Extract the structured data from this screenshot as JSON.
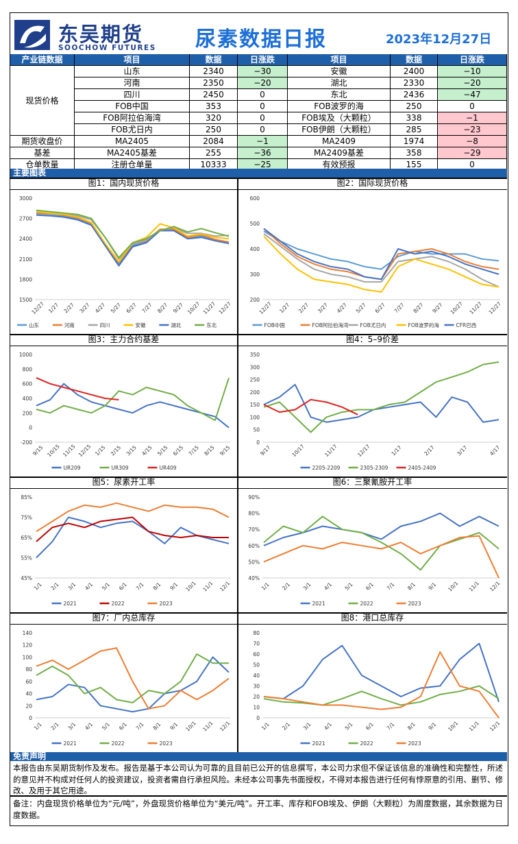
{
  "header": {
    "logo_cn": "东吴期货",
    "logo_en": "SOOCHOW FUTURES",
    "title": "尿素数据日报",
    "date": "2023年12月27日"
  },
  "table": {
    "headers": [
      "产业链数据",
      "项目",
      "数据",
      "日涨跌",
      "项目",
      "数据",
      "日涨跌"
    ],
    "groups": [
      "现货价格",
      "期货收盘价",
      "基差",
      "仓单数量"
    ],
    "rows": [
      {
        "l_item": "山东",
        "l_val": "2340",
        "l_chg": "−30",
        "r_item": "安徽",
        "r_val": "2400",
        "r_chg": "−10"
      },
      {
        "l_item": "河南",
        "l_val": "2350",
        "l_chg": "−20",
        "r_item": "湖北",
        "r_val": "2330",
        "r_chg": "−20"
      },
      {
        "l_item": "四川",
        "l_val": "2450",
        "l_chg": "0",
        "r_item": "东北",
        "r_val": "2436",
        "r_chg": "−47"
      },
      {
        "l_item": "FOB中国",
        "l_val": "353",
        "l_chg": "0",
        "r_item": "FOB波罗的海",
        "r_val": "250",
        "r_chg": "0"
      },
      {
        "l_item": "FOB阿拉伯海湾",
        "l_val": "320",
        "l_chg": "0",
        "r_item": "FOB埃及（大颗粒）",
        "r_val": "338",
        "r_chg": "−1"
      },
      {
        "l_item": "FOB尤日内",
        "l_val": "250",
        "l_chg": "0",
        "r_item": "FOB伊朗（大颗粒）",
        "r_val": "285",
        "r_chg": "−23"
      },
      {
        "l_item": "MA2405",
        "l_val": "2084",
        "l_chg": "−1",
        "r_item": "MA2409",
        "r_val": "1974",
        "r_chg": "−8"
      },
      {
        "l_item": "MA2405基差",
        "l_val": "255",
        "l_chg": "−36",
        "r_item": "MA2409基差",
        "r_val": "358",
        "r_chg": "−29"
      },
      {
        "l_item": "注册仓单量",
        "l_val": "10333",
        "l_chg": "−25",
        "r_item": "有效预报",
        "r_val": "155",
        "r_chg": "0"
      }
    ],
    "colors": {
      "header_bg": "#1f5ea8",
      "up_bg": "#ffc7ce",
      "down_bg": "#c6efce"
    }
  },
  "sections": {
    "charts": "主要图表",
    "disclaimer": "免责声明"
  },
  "chart_data": [
    {
      "id": "c1",
      "title": "图1：国内现货价格",
      "type": "line",
      "x_ticks": [
        "12/27",
        "1/27",
        "2/27",
        "3/27",
        "4/27",
        "5/27",
        "6/27",
        "7/27",
        "8/27",
        "9/27",
        "10/27",
        "11/27",
        "12/27"
      ],
      "yticks": [
        "3000",
        "2700",
        "2400",
        "2100",
        "1800",
        "1500"
      ],
      "ylim": [
        1500,
        3000
      ],
      "series": [
        {
          "name": "山东",
          "color": "#5b9bd5",
          "values": [
            2780,
            2760,
            2740,
            2700,
            2620,
            2300,
            2030,
            2300,
            2350,
            2520,
            2520,
            2400,
            2440,
            2380,
            2340
          ]
        },
        {
          "name": "河南",
          "color": "#ed7d31",
          "values": [
            2790,
            2770,
            2750,
            2710,
            2630,
            2320,
            2050,
            2320,
            2370,
            2540,
            2540,
            2420,
            2460,
            2390,
            2350
          ]
        },
        {
          "name": "四川",
          "color": "#a5a5a5",
          "values": [
            2760,
            2760,
            2760,
            2740,
            2680,
            2420,
            2100,
            2320,
            2380,
            2520,
            2560,
            2480,
            2480,
            2440,
            2450
          ]
        },
        {
          "name": "安徽",
          "color": "#ffc000",
          "values": [
            2800,
            2780,
            2760,
            2720,
            2640,
            2330,
            2060,
            2340,
            2420,
            2620,
            2560,
            2440,
            2470,
            2420,
            2400
          ]
        },
        {
          "name": "湖北",
          "color": "#4472c4",
          "values": [
            2750,
            2740,
            2720,
            2680,
            2600,
            2300,
            2000,
            2280,
            2340,
            2520,
            2520,
            2400,
            2420,
            2370,
            2330
          ]
        },
        {
          "name": "东北",
          "color": "#70ad47",
          "values": [
            2820,
            2800,
            2780,
            2760,
            2700,
            2420,
            2120,
            2340,
            2400,
            2520,
            2580,
            2500,
            2550,
            2490,
            2436
          ]
        }
      ]
    },
    {
      "id": "c2",
      "title": "图2：国际现货价格",
      "type": "line",
      "x_ticks": [
        "12/27",
        "1/27",
        "2/27",
        "3/27",
        "4/27",
        "5/27",
        "6/27",
        "7/27",
        "8/27",
        "9/27",
        "10/27",
        "11/27",
        "12/27"
      ],
      "yticks": [
        "600",
        "500",
        "400",
        "300",
        "200"
      ],
      "ylim": [
        200,
        600
      ],
      "series": [
        {
          "name": "FOB中国",
          "color": "#5b9bd5",
          "values": [
            470,
            430,
            400,
            380,
            360,
            350,
            330,
            320,
            370,
            390,
            380,
            380,
            380,
            360,
            353
          ]
        },
        {
          "name": "FOB阿拉伯海湾",
          "color": "#ed7d31",
          "values": [
            480,
            420,
            370,
            340,
            320,
            310,
            290,
            280,
            380,
            390,
            400,
            380,
            350,
            330,
            320
          ]
        },
        {
          "name": "FOB尤日内",
          "color": "#a5a5a5",
          "values": [
            460,
            410,
            360,
            320,
            300,
            290,
            270,
            270,
            350,
            360,
            370,
            350,
            320,
            280,
            250
          ]
        },
        {
          "name": "FOB波罗的海",
          "color": "#ffc000",
          "values": [
            450,
            380,
            320,
            280,
            270,
            260,
            240,
            230,
            330,
            360,
            340,
            320,
            290,
            260,
            250
          ]
        },
        {
          "name": "CFR巴西",
          "color": "#4472c4",
          "values": [
            480,
            430,
            380,
            350,
            330,
            320,
            290,
            280,
            400,
            380,
            390,
            370,
            340,
            320,
            300
          ]
        }
      ]
    },
    {
      "id": "c3",
      "title": "图3：主力合约基差",
      "type": "line",
      "x_ticks": [
        "9/15",
        "10/15",
        "11/15",
        "12/15",
        "1/15",
        "2/15",
        "3/15",
        "4/15",
        "5/15",
        "6/15",
        "7/15",
        "8/15",
        "9/15"
      ],
      "yticks": [
        "1000",
        "800",
        "600",
        "400",
        "200",
        "0",
        "-200"
      ],
      "ylim": [
        -200,
        1000
      ],
      "series": [
        {
          "name": "UR209",
          "color": "#4472c4",
          "values": [
            300,
            380,
            600,
            450,
            350,
            300,
            250,
            200,
            300,
            350,
            300,
            250,
            200,
            150,
            0
          ]
        },
        {
          "name": "UR309",
          "color": "#70ad47",
          "values": [
            250,
            200,
            300,
            250,
            200,
            300,
            500,
            450,
            550,
            500,
            450,
            300,
            200,
            100,
            680
          ]
        },
        {
          "name": "UR409",
          "color": "#e02020",
          "values": [
            680,
            600,
            550,
            500,
            450,
            400,
            380,
            null,
            null,
            null,
            null,
            null,
            null,
            null,
            null
          ]
        }
      ]
    },
    {
      "id": "c4",
      "title": "图4：5–9价差",
      "type": "line",
      "x_ticks": [
        "9/17",
        "10/17",
        "11/17",
        "12/17",
        "1/17",
        "2/17",
        "3/17",
        "4/17"
      ],
      "yticks": [
        "350",
        "300",
        "250",
        "200",
        "150",
        "100",
        "50",
        "0"
      ],
      "ylim": [
        0,
        350
      ],
      "series": [
        {
          "name": "2205-2209",
          "color": "#4472c4",
          "values": [
            150,
            180,
            230,
            100,
            80,
            90,
            100,
            130,
            140,
            150,
            160,
            100,
            180,
            160,
            80,
            90
          ]
        },
        {
          "name": "2305-2309",
          "color": "#70ad47",
          "values": [
            140,
            160,
            100,
            40,
            100,
            120,
            130,
            130,
            150,
            160,
            200,
            240,
            260,
            280,
            310,
            320
          ]
        },
        {
          "name": "2405-2409",
          "color": "#e02020",
          "values": [
            150,
            120,
            130,
            170,
            160,
            140,
            110,
            null,
            null,
            null,
            null,
            null,
            null,
            null,
            null,
            null
          ]
        }
      ]
    },
    {
      "id": "c5",
      "title": "图5：尿素开工率",
      "type": "line",
      "x_ticks": [
        "1/1",
        "2/1",
        "3/1",
        "4/1",
        "5/1",
        "6/1",
        "7/1",
        "8/1",
        "9/1",
        "10/1",
        "11/1",
        "12/1"
      ],
      "yticks": [
        "85%",
        "75%",
        "65%",
        "55%",
        "45%"
      ],
      "ylim": [
        45,
        85
      ],
      "series": [
        {
          "name": "2021",
          "color": "#4472c4",
          "values": [
            55,
            63,
            75,
            73,
            70,
            72,
            73,
            68,
            62,
            70,
            66,
            64,
            62
          ]
        },
        {
          "name": "2022",
          "color": "#c00000",
          "values": [
            63,
            70,
            72,
            70,
            73,
            74,
            75,
            68,
            66,
            65,
            66,
            65,
            65
          ]
        },
        {
          "name": "2023",
          "color": "#ed7d31",
          "values": [
            68,
            73,
            78,
            81,
            80,
            82,
            80,
            78,
            81,
            80,
            80,
            79,
            75
          ]
        }
      ]
    },
    {
      "id": "c6",
      "title": "图6：三聚氰胺开工率",
      "type": "line",
      "x_ticks": [
        "1/1",
        "2/1",
        "3/1",
        "4/1",
        "5/1",
        "6/1",
        "7/1",
        "8/1",
        "9/1",
        "10/1",
        "11/1",
        "12/1"
      ],
      "yticks": [
        "90%",
        "80%",
        "70%",
        "60%",
        "50%",
        "40%"
      ],
      "ylim": [
        40,
        90
      ],
      "series": [
        {
          "name": "2021",
          "color": "#4472c4",
          "values": [
            60,
            65,
            68,
            72,
            70,
            68,
            64,
            72,
            75,
            80,
            72,
            78,
            72
          ]
        },
        {
          "name": "2022",
          "color": "#70ad47",
          "values": [
            62,
            72,
            68,
            78,
            70,
            68,
            62,
            55,
            45,
            60,
            64,
            68,
            58
          ]
        },
        {
          "name": "2023",
          "color": "#ed7d31",
          "values": [
            50,
            55,
            60,
            58,
            62,
            60,
            58,
            62,
            55,
            60,
            65,
            66,
            40
          ]
        }
      ]
    },
    {
      "id": "c7",
      "title": "图7：厂内总库存",
      "type": "line",
      "x_ticks": [
        "1/1",
        "2/1",
        "3/1",
        "4/1",
        "5/1",
        "6/1",
        "7/1",
        "8/1",
        "9/1",
        "10/1",
        "11/1",
        "12/1"
      ],
      "yticks": [
        "140",
        "120",
        "100",
        "80",
        "60",
        "40",
        "20",
        "0"
      ],
      "ylim": [
        0,
        140
      ],
      "series": [
        {
          "name": "2021",
          "color": "#4472c4",
          "values": [
            30,
            35,
            55,
            50,
            20,
            15,
            10,
            15,
            40,
            45,
            60,
            100,
            75
          ]
        },
        {
          "name": "2022",
          "color": "#70ad47",
          "values": [
            70,
            85,
            70,
            40,
            50,
            30,
            25,
            45,
            40,
            60,
            105,
            90,
            90
          ]
        },
        {
          "name": "2023",
          "color": "#ed7d31",
          "values": [
            85,
            95,
            80,
            95,
            110,
            115,
            60,
            15,
            20,
            45,
            30,
            45,
            65
          ]
        }
      ]
    },
    {
      "id": "c8",
      "title": "图8：港口总库存",
      "type": "line",
      "x_ticks": [
        "1/1",
        "2/1",
        "3/1",
        "4/1",
        "5/1",
        "6/1",
        "7/1",
        "8/1",
        "9/1",
        "10/1",
        "11/1",
        "12/1"
      ],
      "yticks": [
        "80",
        "70",
        "60",
        "50",
        "40",
        "30",
        "20",
        "10",
        "0"
      ],
      "ylim": [
        0,
        80
      ],
      "series": [
        {
          "name": "2021",
          "color": "#4472c4",
          "values": [
            20,
            18,
            30,
            55,
            68,
            40,
            30,
            20,
            28,
            30,
            55,
            70,
            15
          ]
        },
        {
          "name": "2022",
          "color": "#70ad47",
          "values": [
            18,
            15,
            14,
            12,
            18,
            25,
            18,
            12,
            15,
            22,
            25,
            30,
            18
          ]
        },
        {
          "name": "2023",
          "color": "#ed7d31",
          "values": [
            20,
            18,
            15,
            12,
            12,
            10,
            8,
            10,
            20,
            62,
            30,
            25,
            0
          ]
        }
      ]
    }
  ],
  "disclaimer": "本报告由东吴期货制作及发布。报告是基于本公司认为可靠的且目前已公开的信息撰写，本公司力求但不保证该信息的准确性和完整性，所述的意见并不构成对任何人的投资建议，投资者需自行承担风险。未经本公司事先书面授权，不得对本报告进行任何有悖原意的引用、删节、修改、及用于其它用途。",
  "note": "备注：内盘现货价格单位为“元/吨”，外盘现货价格单位为“美元/吨”。开工率、库存和FOB埃及、伊朗（大颗粒）为周度数据，其余数据为日度数据。"
}
